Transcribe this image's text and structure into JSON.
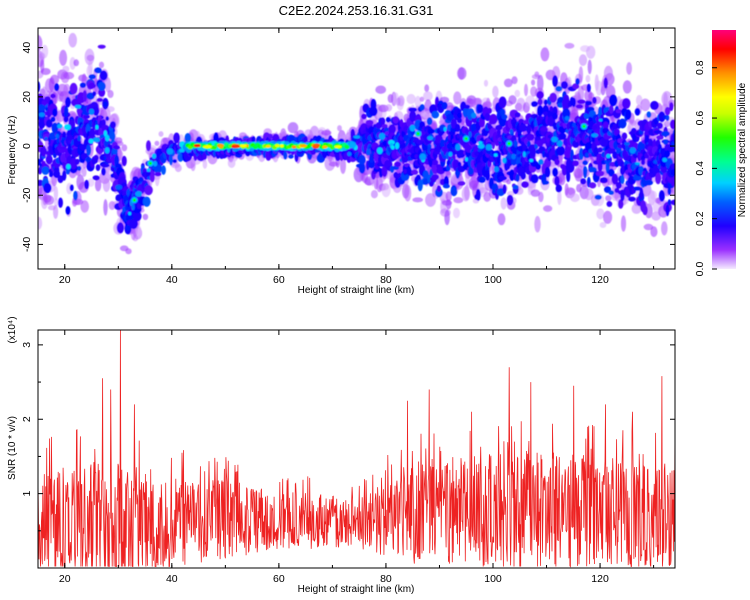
{
  "chart_data": [
    {
      "type": "heatmap",
      "title": "C2E2.2024.253.16.31.G31",
      "xlabel": "Height of straight line (km)",
      "ylabel": "Frequency (Hz)",
      "xlim": [
        15,
        134
      ],
      "ylim": [
        -50,
        48
      ],
      "xticks": [
        20,
        40,
        60,
        80,
        100,
        120
      ],
      "yticks": [
        -40,
        -20,
        0,
        20,
        40
      ],
      "colorbar": {
        "label": "Normalized spectral amplitude",
        "range": [
          0,
          0.95
        ],
        "ticks": [
          0.0,
          0.2,
          0.4,
          0.6,
          0.8
        ],
        "colormap": [
          "#f0e0ff",
          "#9a30ff",
          "#4800ff",
          "#0000ff",
          "#0090ff",
          "#00e0ff",
          "#00ff80",
          "#00ff00",
          "#c0ff00",
          "#ffff00",
          "#ff9000",
          "#ff0000",
          "#ff0090"
        ]
      },
      "ridge": [
        {
          "x": 15,
          "y": 5,
          "spread": 16
        },
        {
          "x": 20,
          "y": 2,
          "spread": 14
        },
        {
          "x": 24,
          "y": 8,
          "spread": 14
        },
        {
          "x": 27,
          "y": 12,
          "spread": 13
        },
        {
          "x": 29,
          "y": -2,
          "spread": 8
        },
        {
          "x": 31,
          "y": -20,
          "spread": 9
        },
        {
          "x": 32,
          "y": -28,
          "spread": 8
        },
        {
          "x": 34,
          "y": -20,
          "spread": 6
        },
        {
          "x": 36,
          "y": -8,
          "spread": 5
        },
        {
          "x": 40,
          "y": -2,
          "spread": 3
        },
        {
          "x": 45,
          "y": -1,
          "spread": 2.5
        },
        {
          "x": 55,
          "y": 0,
          "spread": 2.5
        },
        {
          "x": 65,
          "y": 0,
          "spread": 2.5
        },
        {
          "x": 73,
          "y": -1,
          "spread": 3
        },
        {
          "x": 76,
          "y": 1,
          "spread": 8
        },
        {
          "x": 90,
          "y": 0,
          "spread": 11
        },
        {
          "x": 105,
          "y": 0,
          "spread": 11
        },
        {
          "x": 116,
          "y": 8,
          "spread": 14
        },
        {
          "x": 120,
          "y": 2,
          "spread": 13
        },
        {
          "x": 128,
          "y": -5,
          "spread": 12
        },
        {
          "x": 134,
          "y": -5,
          "spread": 11
        }
      ],
      "hot_segment": {
        "x_start": 42,
        "x_end": 74,
        "y": 0
      }
    },
    {
      "type": "line",
      "xlabel": "Height of straight line (km)",
      "ylabel": "SNR (10 * v/v)",
      "y_multiplier": "(x10⁴)",
      "xlim": [
        15,
        134
      ],
      "ylim": [
        0,
        3.2
      ],
      "xticks": [
        20,
        40,
        60,
        80,
        100,
        120
      ],
      "yticks": [
        1,
        2,
        3
      ],
      "series": [
        {
          "color": "#ee2222"
        }
      ],
      "envelope": [
        {
          "x": 15,
          "base": 0.55,
          "amp": 0.75
        },
        {
          "x": 30,
          "base": 0.6,
          "amp": 0.9
        },
        {
          "x": 45,
          "base": 0.65,
          "amp": 0.6
        },
        {
          "x": 60,
          "base": 0.65,
          "amp": 0.4
        },
        {
          "x": 75,
          "base": 0.6,
          "amp": 0.35
        },
        {
          "x": 85,
          "base": 0.75,
          "amp": 0.7
        },
        {
          "x": 105,
          "base": 0.8,
          "amp": 0.8
        },
        {
          "x": 120,
          "base": 0.75,
          "amp": 0.75
        },
        {
          "x": 134,
          "base": 0.7,
          "amp": 0.7
        }
      ],
      "peaks": [
        {
          "x": 30.3,
          "y": 3.2
        },
        {
          "x": 27,
          "y": 2.55
        },
        {
          "x": 28.5,
          "y": 2.4
        },
        {
          "x": 103,
          "y": 2.7
        },
        {
          "x": 131.5,
          "y": 2.58
        },
        {
          "x": 107,
          "y": 2.5
        },
        {
          "x": 88,
          "y": 2.4
        },
        {
          "x": 115,
          "y": 2.45
        },
        {
          "x": 33,
          "y": 2.2
        },
        {
          "x": 84,
          "y": 2.25
        },
        {
          "x": 121,
          "y": 2.2
        },
        {
          "x": 126,
          "y": 2.1
        },
        {
          "x": 96,
          "y": 2.1
        }
      ]
    }
  ]
}
